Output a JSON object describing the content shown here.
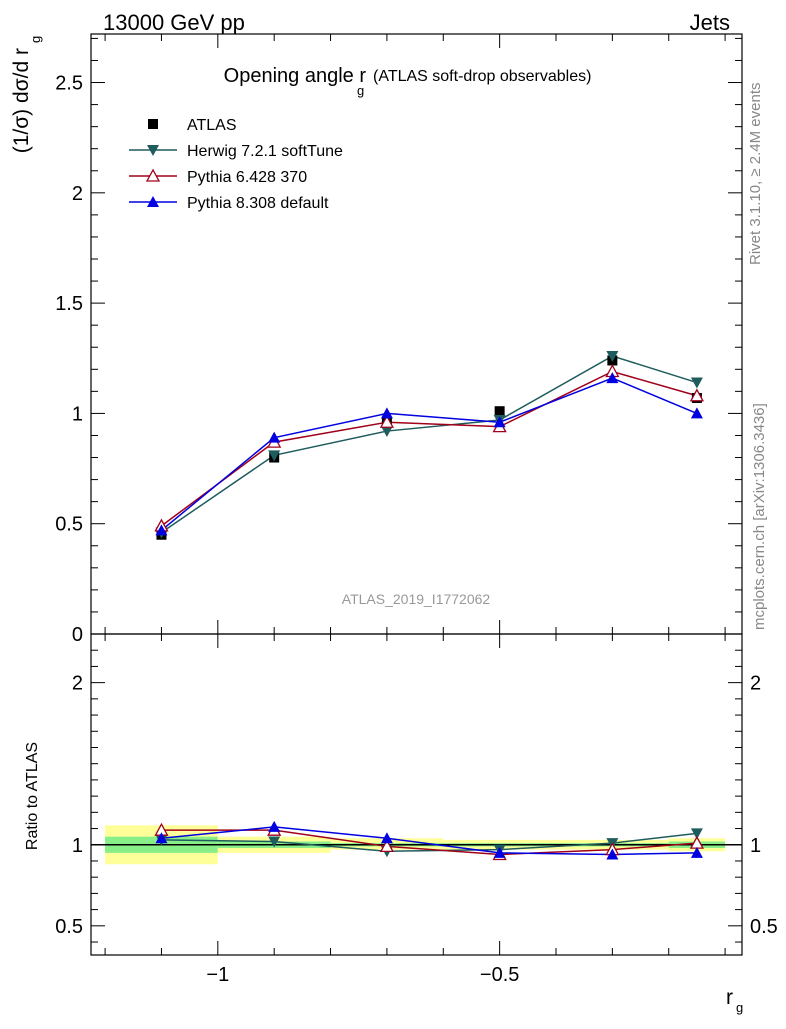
{
  "header": {
    "left": "13000 GeV pp",
    "right": "Jets"
  },
  "side_labels": {
    "rivet": "Rivet 3.1.10, ≥ 2.4M events",
    "mcplots": "mcplots.cern.ch [arXiv:1306.3436]"
  },
  "watermark": "ATLAS_2019_I1772062",
  "colors": {
    "atlas": "#000000",
    "herwig": "#1f5c5e",
    "pythia6": "#a0001a",
    "pythia8": "#0000e0",
    "band_outer": "#ffff99",
    "band_inner": "#88ee88"
  },
  "chart_data": [
    {
      "type": "line",
      "title": "Opening angle r",
      "title_sub": "g",
      "title_suffix": "(ATLAS soft-drop observables)",
      "ylabel": "(1/σ) dσ/d r",
      "ylabel_sub": "g",
      "ylim": [
        0,
        2.72
      ],
      "yticks": [
        0,
        0.5,
        1,
        1.5,
        2,
        2.5
      ],
      "ytick_labels": [
        "0",
        "0.5",
        "1",
        "1.5",
        "2",
        "2.5"
      ],
      "x": [
        -1.1,
        -0.9,
        -0.7,
        -0.5,
        -0.3,
        -0.15
      ],
      "series": [
        {
          "name": "ATLAS",
          "marker": "square",
          "values": [
            0.45,
            0.8,
            0.96,
            1.01,
            1.24,
            1.07
          ]
        },
        {
          "name": "Herwig 7.2.1 softTune",
          "marker": "triangle-down",
          "values": [
            0.46,
            0.81,
            0.92,
            0.97,
            1.26,
            1.14
          ]
        },
        {
          "name": "Pythia 6.428 370",
          "marker": "triangle-up-open",
          "values": [
            0.49,
            0.87,
            0.96,
            0.94,
            1.19,
            1.08
          ]
        },
        {
          "name": "Pythia 8.308 default",
          "marker": "triangle-up",
          "values": [
            0.47,
            0.89,
            1.0,
            0.96,
            1.16,
            1.0
          ]
        }
      ],
      "legend_placement": "top-left"
    },
    {
      "type": "line",
      "ylabel": "Ratio to ATLAS",
      "xlabel": "r",
      "xlabel_sub": "g",
      "xlim": [
        -1.225,
        -0.07
      ],
      "xticks": [
        -1,
        -0.5
      ],
      "xtick_labels": [
        "−1",
        "−0.5"
      ],
      "ylim": [
        0.32,
        2.3
      ],
      "yticks": [
        0.5,
        1,
        2
      ],
      "ytick_labels": [
        "0.5",
        "1",
        "2"
      ],
      "bins": [
        [
          -1.2,
          -1.0
        ],
        [
          -1.0,
          -0.8
        ],
        [
          -0.8,
          -0.6
        ],
        [
          -0.6,
          -0.4
        ],
        [
          -0.4,
          -0.2
        ],
        [
          -0.2,
          -0.1
        ]
      ],
      "band_outer": [
        [
          0.88,
          1.12
        ],
        [
          0.95,
          1.05
        ],
        [
          0.97,
          1.04
        ],
        [
          0.97,
          1.03
        ],
        [
          0.97,
          1.03
        ],
        [
          0.96,
          1.04
        ]
      ],
      "band_inner": [
        [
          0.95,
          1.05
        ],
        [
          0.98,
          1.02
        ],
        [
          0.99,
          1.01
        ],
        [
          0.99,
          1.01
        ],
        [
          0.99,
          1.01
        ],
        [
          0.98,
          1.02
        ]
      ],
      "series": [
        {
          "name": "Herwig 7.2.1 softTune",
          "marker": "triangle-down",
          "values": [
            1.03,
            1.02,
            0.96,
            0.97,
            1.01,
            1.07
          ]
        },
        {
          "name": "Pythia 6.428 370",
          "marker": "triangle-up-open",
          "values": [
            1.09,
            1.09,
            0.99,
            0.94,
            0.97,
            1.01
          ]
        },
        {
          "name": "Pythia 8.308 default",
          "marker": "triangle-up",
          "values": [
            1.04,
            1.11,
            1.04,
            0.95,
            0.94,
            0.95
          ]
        }
      ]
    }
  ]
}
